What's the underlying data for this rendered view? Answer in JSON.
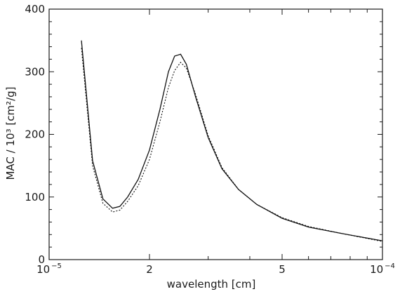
{
  "chart_data": {
    "type": "line",
    "xlabel": "wavelength [cm]",
    "ylabel": "MAC / 10³ [cm²/g]",
    "xscale": "log",
    "xlim": [
      1e-05,
      0.0001
    ],
    "ylim": [
      0,
      400
    ],
    "grid": false,
    "legend": "none",
    "x_tick_labels": [
      {
        "value": 1e-05,
        "base": "10",
        "exp": "−5"
      },
      {
        "value": 2e-05,
        "base": "2",
        "exp": ""
      },
      {
        "value": 5e-05,
        "base": "5",
        "exp": ""
      },
      {
        "value": 0.0001,
        "base": "10",
        "exp": "−4"
      }
    ],
    "y_ticks": [
      0,
      100,
      200,
      300,
      400
    ],
    "series": [
      {
        "style": "solid",
        "x": [
          1.25e-05,
          1.35e-05,
          1.45e-05,
          1.55e-05,
          1.63e-05,
          1.72e-05,
          1.85e-05,
          2e-05,
          2.15e-05,
          2.28e-05,
          2.38e-05,
          2.48e-05,
          2.58e-05,
          2.75e-05,
          3e-05,
          3.3e-05,
          3.7e-05,
          4.2e-05,
          5e-05,
          6e-05,
          7.5e-05,
          0.0001
        ],
        "y": [
          350,
          158,
          97,
          82,
          85,
          100,
          128,
          175,
          240,
          300,
          325,
          328,
          312,
          260,
          195,
          145,
          112,
          88,
          66,
          52,
          42,
          30
        ]
      },
      {
        "style": "dotted",
        "x": [
          1.25e-05,
          1.35e-05,
          1.45e-05,
          1.55e-05,
          1.63e-05,
          1.72e-05,
          1.85e-05,
          2e-05,
          2.15e-05,
          2.28e-05,
          2.38e-05,
          2.48e-05,
          2.58e-05,
          2.75e-05,
          3e-05,
          3.3e-05,
          3.7e-05,
          4.2e-05,
          5e-05,
          6e-05,
          7.5e-05,
          0.0001
        ],
        "y": [
          338,
          150,
          90,
          76,
          79,
          93,
          118,
          160,
          220,
          275,
          302,
          315,
          306,
          264,
          198,
          147,
          112,
          88,
          67,
          53,
          42,
          29
        ]
      }
    ],
    "colors": {
      "ink": "#111111",
      "background": "#ffffff"
    }
  }
}
